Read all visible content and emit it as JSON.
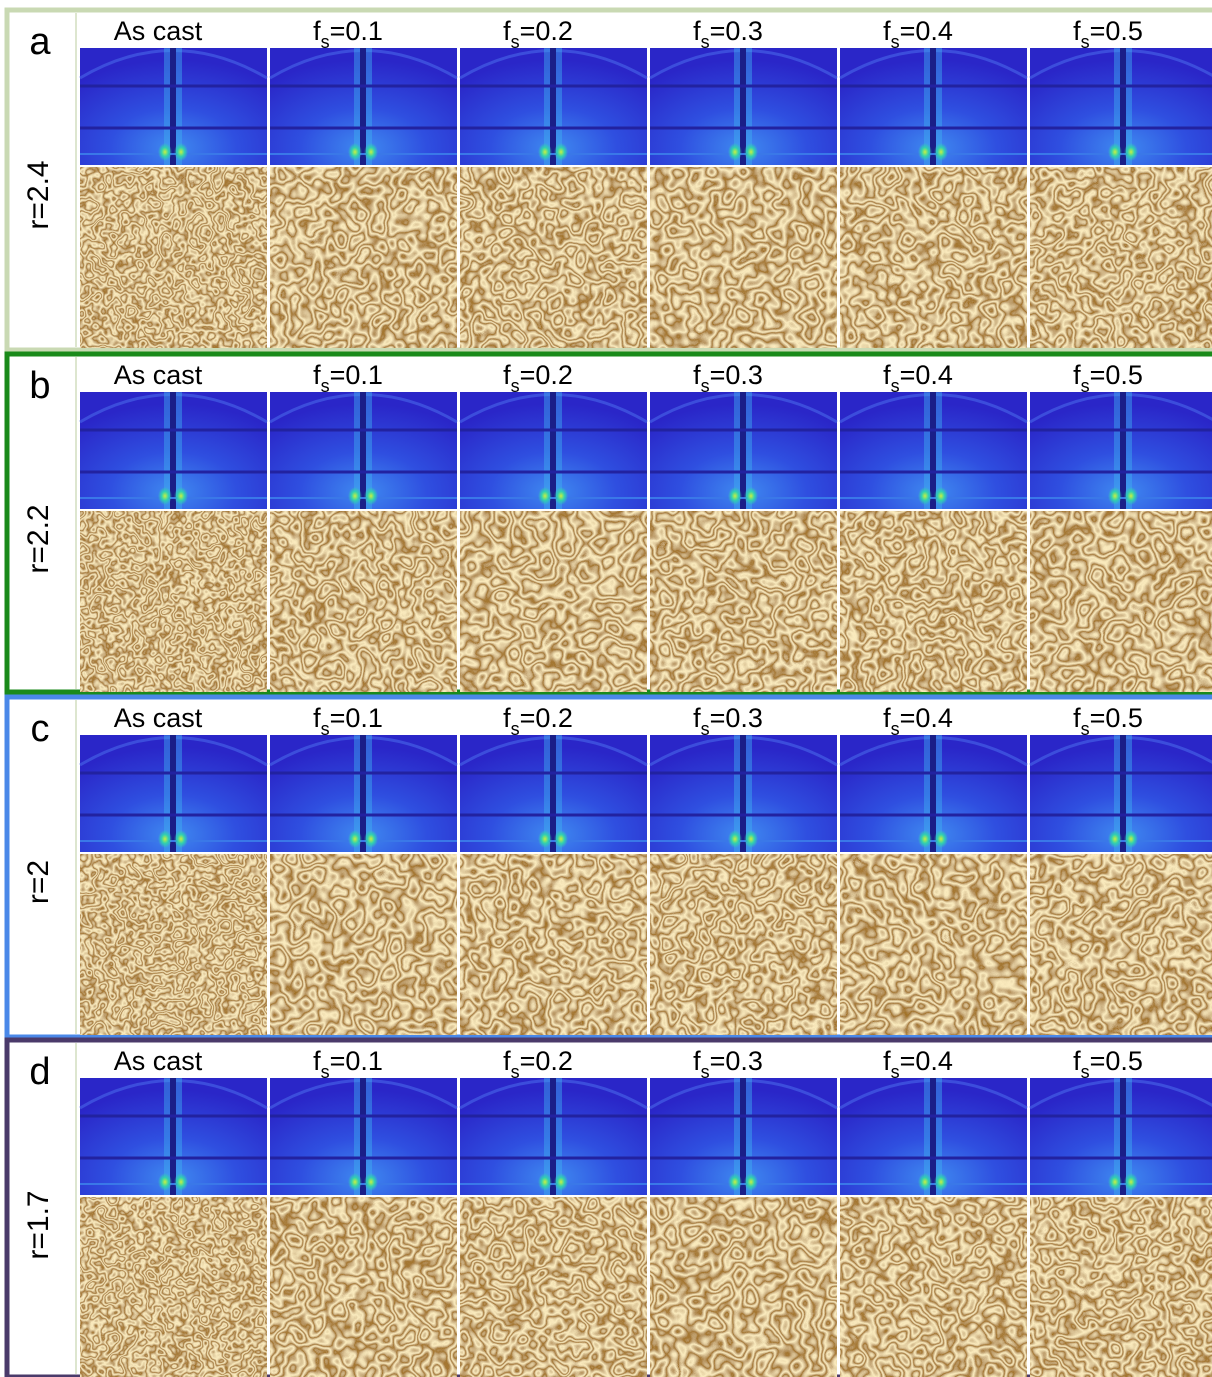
{
  "panels": [
    {
      "label": "a",
      "ratio": "r=2.4",
      "color": "#c9d9b3",
      "columns": [
        "As cast",
        {
          "main": "f",
          "sub": "s",
          "rest": "=0.1"
        },
        {
          "main": "f",
          "sub": "s",
          "rest": "=0.2"
        },
        {
          "main": "f",
          "sub": "s",
          "rest": "=0.3"
        },
        {
          "main": "f",
          "sub": "s",
          "rest": "=0.4"
        },
        {
          "main": "f",
          "sub": "s",
          "rest": "=0.5"
        }
      ]
    },
    {
      "label": "b",
      "ratio": "r=2.2",
      "color": "#1a8a1a",
      "columns": [
        "As cast",
        {
          "main": "f",
          "sub": "s",
          "rest": "=0.1"
        },
        {
          "main": "f",
          "sub": "s",
          "rest": "=0.2"
        },
        {
          "main": "f",
          "sub": "s",
          "rest": "=0.3"
        },
        {
          "main": "f",
          "sub": "s",
          "rest": "=0.4"
        },
        {
          "main": "f",
          "sub": "s",
          "rest": "=0.5"
        }
      ]
    },
    {
      "label": "c",
      "ratio": "r=2",
      "color": "#4a88e8",
      "columns": [
        "As cast",
        {
          "main": "f",
          "sub": "s",
          "rest": "=0.1"
        },
        {
          "main": "f",
          "sub": "s",
          "rest": "=0.2"
        },
        {
          "main": "f",
          "sub": "s",
          "rest": "=0.3"
        },
        {
          "main": "f",
          "sub": "s",
          "rest": "=0.4"
        },
        {
          "main": "f",
          "sub": "s",
          "rest": "=0.5"
        }
      ]
    },
    {
      "label": "d",
      "ratio": "r=1.7",
      "color": "#4a3a6a",
      "columns": [
        "As cast",
        {
          "main": "f",
          "sub": "s",
          "rest": "=0.1"
        },
        {
          "main": "f",
          "sub": "s",
          "rest": "=0.2"
        },
        {
          "main": "f",
          "sub": "s",
          "rest": "=0.3"
        },
        {
          "main": "f",
          "sub": "s",
          "rest": "=0.4"
        },
        {
          "main": "f",
          "sub": "s",
          "rest": "=0.5"
        }
      ]
    }
  ]
}
